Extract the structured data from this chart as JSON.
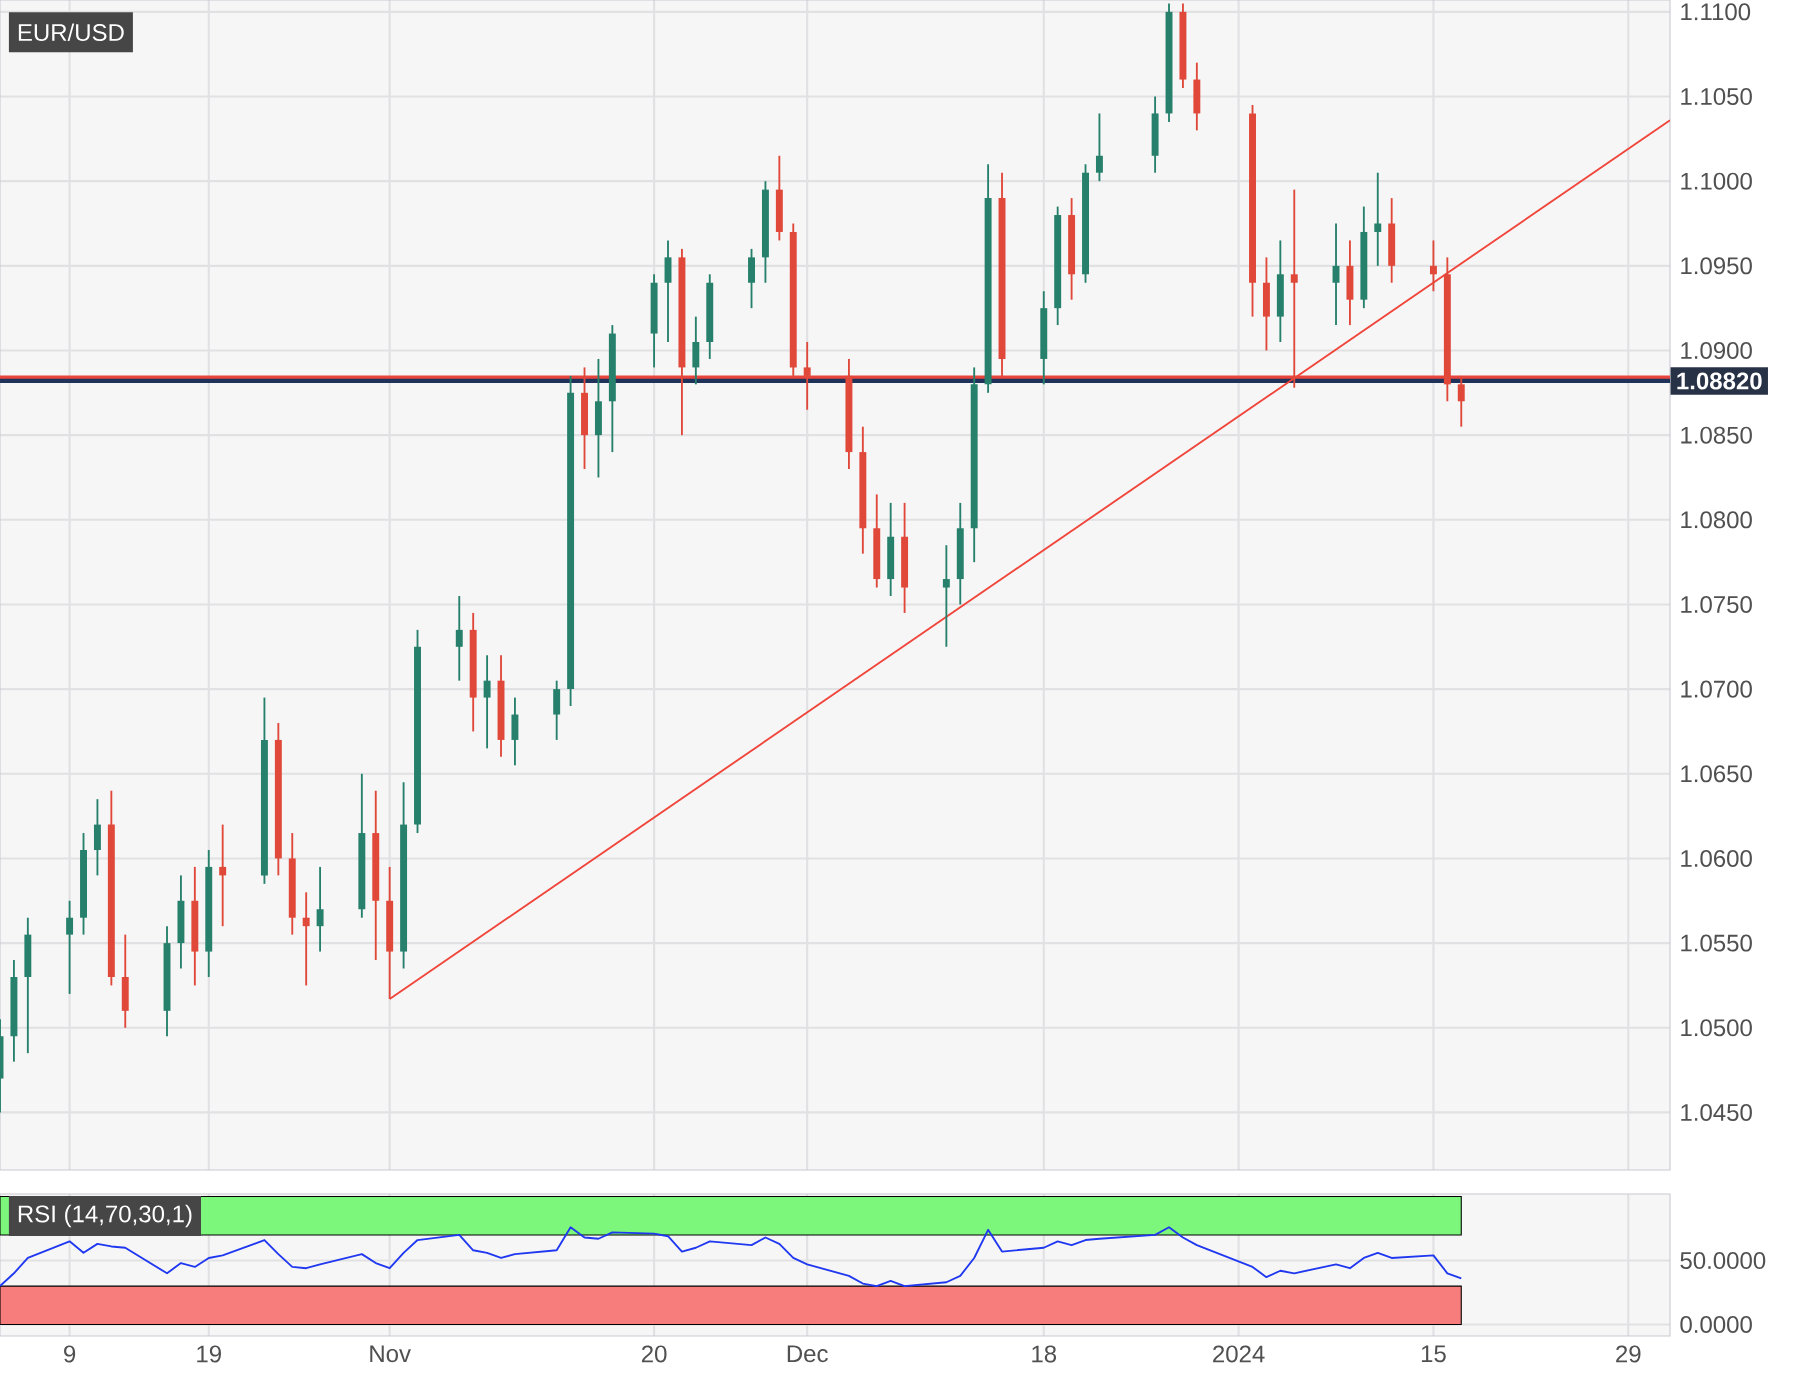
{
  "chart_data": [
    {
      "type": "candlestick",
      "title": "EUR/USD",
      "tick_labels": "y",
      "grid": true,
      "xlim": [
        "2023-10-04",
        "2024-02-01"
      ],
      "xticks": [
        {
          "value": "2023-10-09",
          "label": null
        },
        {
          "value": "2023-10-19",
          "label": null
        },
        {
          "value": "2023-11-01",
          "label": null
        },
        {
          "value": "2023-11-20",
          "label": null
        },
        {
          "value": "2023-12-01",
          "label": null
        },
        {
          "value": "2023-12-18",
          "label": null
        },
        {
          "value": "2024-01-01",
          "label": null
        },
        {
          "value": "2024-01-15",
          "label": null
        },
        {
          "value": "2024-01-29",
          "label": null
        }
      ],
      "ylim": [
        1.0416,
        1.1107
      ],
      "yticks": [
        {
          "value": 1.045,
          "label": "1.0450"
        },
        {
          "value": 1.05,
          "label": "1.0500"
        },
        {
          "value": 1.055,
          "label": "1.0550"
        },
        {
          "value": 1.06,
          "label": "1.0600"
        },
        {
          "value": 1.065,
          "label": "1.0650"
        },
        {
          "value": 1.07,
          "label": "1.0700"
        },
        {
          "value": 1.075,
          "label": "1.0750"
        },
        {
          "value": 1.08,
          "label": "1.0800"
        },
        {
          "value": 1.085,
          "label": "1.0850"
        },
        {
          "value": 1.09,
          "label": "1.0900"
        },
        {
          "value": 1.095,
          "label": "1.0950"
        },
        {
          "value": 1.1,
          "label": "1.1000"
        },
        {
          "value": 1.105,
          "label": "1.1050"
        },
        {
          "value": 1.11,
          "label": "1.1100"
        }
      ],
      "x": [
        "2023-10-04",
        "2023-10-05",
        "2023-10-06",
        "2023-10-09",
        "2023-10-10",
        "2023-10-11",
        "2023-10-12",
        "2023-10-13",
        "2023-10-16",
        "2023-10-17",
        "2023-10-18",
        "2023-10-19",
        "2023-10-20",
        "2023-10-23",
        "2023-10-24",
        "2023-10-25",
        "2023-10-26",
        "2023-10-27",
        "2023-10-30",
        "2023-10-31",
        "2023-11-01",
        "2023-11-02",
        "2023-11-03",
        "2023-11-06",
        "2023-11-07",
        "2023-11-08",
        "2023-11-09",
        "2023-11-10",
        "2023-11-13",
        "2023-11-14",
        "2023-11-15",
        "2023-11-16",
        "2023-11-17",
        "2023-11-20",
        "2023-11-21",
        "2023-11-22",
        "2023-11-23",
        "2023-11-24",
        "2023-11-27",
        "2023-11-28",
        "2023-11-29",
        "2023-11-30",
        "2023-12-01",
        "2023-12-04",
        "2023-12-05",
        "2023-12-06",
        "2023-12-07",
        "2023-12-08",
        "2023-12-11",
        "2023-12-12",
        "2023-12-13",
        "2023-12-14",
        "2023-12-15",
        "2023-12-18",
        "2023-12-19",
        "2023-12-20",
        "2023-12-21",
        "2023-12-22",
        "2023-12-26",
        "2023-12-27",
        "2023-12-28",
        "2023-12-29",
        "2024-01-02",
        "2024-01-03",
        "2024-01-04",
        "2024-01-05",
        "2024-01-08",
        "2024-01-09",
        "2024-01-10",
        "2024-01-11",
        "2024-01-12",
        "2024-01-15",
        "2024-01-16",
        "2024-01-17"
      ],
      "ohlc": [
        [
          1.047,
          1.0505,
          1.045,
          1.0495
        ],
        [
          1.0495,
          1.054,
          1.048,
          1.053
        ],
        [
          1.053,
          1.0565,
          1.0485,
          1.0555
        ],
        [
          1.0555,
          1.0575,
          1.052,
          1.0565
        ],
        [
          1.0565,
          1.0615,
          1.0555,
          1.0605
        ],
        [
          1.0605,
          1.0635,
          1.059,
          1.062
        ],
        [
          1.062,
          1.064,
          1.0525,
          1.053
        ],
        [
          1.053,
          1.0555,
          1.05,
          1.051
        ],
        [
          1.051,
          1.056,
          1.0495,
          1.055
        ],
        [
          1.055,
          1.059,
          1.0535,
          1.0575
        ],
        [
          1.0575,
          1.0595,
          1.0525,
          1.0545
        ],
        [
          1.0545,
          1.0605,
          1.053,
          1.0595
        ],
        [
          1.0595,
          1.062,
          1.056,
          1.059
        ],
        [
          1.059,
          1.0695,
          1.0585,
          1.067
        ],
        [
          1.067,
          1.068,
          1.059,
          1.06
        ],
        [
          1.06,
          1.0615,
          1.0555,
          1.0565
        ],
        [
          1.0565,
          1.058,
          1.0525,
          1.056
        ],
        [
          1.056,
          1.0595,
          1.0545,
          1.057
        ],
        [
          1.057,
          1.065,
          1.0565,
          1.0615
        ],
        [
          1.0615,
          1.064,
          1.054,
          1.0575
        ],
        [
          1.0575,
          1.0595,
          1.0517,
          1.0545
        ],
        [
          1.0545,
          1.0645,
          1.0535,
          1.062
        ],
        [
          1.062,
          1.0735,
          1.0615,
          1.0725
        ],
        [
          1.0725,
          1.0755,
          1.0705,
          1.0735
        ],
        [
          1.0735,
          1.0745,
          1.0675,
          1.0695
        ],
        [
          1.0695,
          1.072,
          1.0665,
          1.0705
        ],
        [
          1.0705,
          1.072,
          1.066,
          1.067
        ],
        [
          1.067,
          1.0695,
          1.0655,
          1.0685
        ],
        [
          1.0685,
          1.0705,
          1.067,
          1.07
        ],
        [
          1.07,
          1.0885,
          1.069,
          1.0875
        ],
        [
          1.0875,
          1.089,
          1.083,
          1.085
        ],
        [
          1.085,
          1.0895,
          1.0825,
          1.087
        ],
        [
          1.087,
          1.0915,
          1.084,
          1.091
        ],
        [
          1.091,
          1.0945,
          1.089,
          1.094
        ],
        [
          1.094,
          1.0965,
          1.0905,
          1.0955
        ],
        [
          1.0955,
          1.096,
          1.085,
          1.089
        ],
        [
          1.089,
          1.092,
          1.088,
          1.0905
        ],
        [
          1.0905,
          1.0945,
          1.0895,
          1.094
        ],
        [
          1.094,
          1.096,
          1.0925,
          1.0955
        ],
        [
          1.0955,
          1.1,
          1.094,
          1.0995
        ],
        [
          1.0995,
          1.1015,
          1.0965,
          1.097
        ],
        [
          1.097,
          1.0975,
          1.0885,
          1.089
        ],
        [
          1.089,
          1.0905,
          1.0865,
          1.0885
        ],
        [
          1.0885,
          1.0895,
          1.083,
          1.084
        ],
        [
          1.084,
          1.0855,
          1.078,
          1.0795
        ],
        [
          1.0795,
          1.0815,
          1.076,
          1.0765
        ],
        [
          1.0765,
          1.081,
          1.0755,
          1.079
        ],
        [
          1.079,
          1.081,
          1.0745,
          1.076
        ],
        [
          1.076,
          1.0785,
          1.0725,
          1.0765
        ],
        [
          1.0765,
          1.081,
          1.075,
          1.0795
        ],
        [
          1.0795,
          1.089,
          1.0775,
          1.088
        ],
        [
          1.088,
          1.101,
          1.0875,
          1.099
        ],
        [
          1.099,
          1.1005,
          1.0885,
          1.0895
        ],
        [
          1.0895,
          1.0935,
          1.088,
          1.0925
        ],
        [
          1.0925,
          1.0985,
          1.0915,
          1.098
        ],
        [
          1.098,
          1.099,
          1.093,
          1.0945
        ],
        [
          1.0945,
          1.101,
          1.094,
          1.1005
        ],
        [
          1.1005,
          1.104,
          1.1,
          1.1015
        ],
        [
          1.1015,
          1.105,
          1.1005,
          1.104
        ],
        [
          1.104,
          1.1105,
          1.1035,
          1.11
        ],
        [
          1.11,
          1.1105,
          1.1055,
          1.106
        ],
        [
          1.106,
          1.107,
          1.103,
          1.104
        ],
        [
          1.104,
          1.1045,
          1.092,
          1.094
        ],
        [
          1.094,
          1.0955,
          1.09,
          1.092
        ],
        [
          1.092,
          1.0965,
          1.0905,
          1.0945
        ],
        [
          1.0945,
          1.0995,
          1.0878,
          1.094
        ],
        [
          1.094,
          1.0975,
          1.0915,
          1.095
        ],
        [
          1.095,
          1.0965,
          1.0915,
          1.093
        ],
        [
          1.093,
          1.0985,
          1.0925,
          1.097
        ],
        [
          1.097,
          1.1005,
          1.095,
          1.0975
        ],
        [
          1.0975,
          1.099,
          1.094,
          1.095
        ],
        [
          1.095,
          1.0965,
          1.0935,
          1.0945
        ],
        [
          1.0945,
          1.0955,
          1.087,
          1.088
        ],
        [
          1.088,
          1.0885,
          1.0855,
          1.087
        ]
      ],
      "colors": [
        "#26806b",
        "#26806b",
        "#26806b",
        "#26806b",
        "#26806b",
        "#26806b",
        "#e0483a",
        "#e0483a",
        "#26806b",
        "#26806b",
        "#e0483a",
        "#26806b",
        "#e0483a",
        "#26806b",
        "#e0483a",
        "#e0483a",
        "#e0483a",
        "#26806b",
        "#26806b",
        "#e0483a",
        "#e0483a",
        "#26806b",
        "#26806b",
        "#26806b",
        "#e0483a",
        "#26806b",
        "#e0483a",
        "#26806b",
        "#26806b",
        "#26806b",
        "#e0483a",
        "#26806b",
        "#26806b",
        "#26806b",
        "#26806b",
        "#e0483a",
        "#26806b",
        "#26806b",
        "#26806b",
        "#26806b",
        "#e0483a",
        "#e0483a",
        "#e0483a",
        "#e0483a",
        "#e0483a",
        "#e0483a",
        "#26806b",
        "#e0483a",
        "#26806b",
        "#26806b",
        "#26806b",
        "#26806b",
        "#e0483a",
        "#26806b",
        "#26806b",
        "#e0483a",
        "#26806b",
        "#26806b",
        "#26806b",
        "#26806b",
        "#e0483a",
        "#e0483a",
        "#e0483a",
        "#e0483a",
        "#26806b",
        "#e0483a",
        "#26806b",
        "#e0483a",
        "#26806b",
        "#26806b",
        "#e0483a",
        "#e0483a",
        "#e0483a",
        "#e0483a"
      ],
      "series": [
        {
          "type": "line",
          "color": "#f0453a",
          "x": [
            "2023-11-01",
            "2024-02-01"
          ],
          "values": [
            1.0517,
            1.1036
          ]
        }
      ],
      "ref_lines": [
        {
          "axis": "y",
          "value": 1.0884,
          "color": "#e8453c"
        },
        {
          "axis": "y",
          "value": 1.0882,
          "label": "1.08820",
          "color": "#1e325a"
        }
      ]
    },
    {
      "type": "line",
      "title": "RSI (14,70,30,1)",
      "grid": true,
      "xlim": [
        "2023-10-04",
        "2024-02-01"
      ],
      "xticks": [
        {
          "value": "2023-10-09",
          "label": "9"
        },
        {
          "value": "2023-10-19",
          "label": "19"
        },
        {
          "value": "2023-11-01",
          "label": "Nov"
        },
        {
          "value": "2023-11-20",
          "label": "20"
        },
        {
          "value": "2023-12-01",
          "label": "Dec"
        },
        {
          "value": "2023-12-18",
          "label": "18"
        },
        {
          "value": "2024-01-01",
          "label": "2024"
        },
        {
          "value": "2024-01-15",
          "label": "15"
        },
        {
          "value": "2024-01-29",
          "label": "29"
        }
      ],
      "ylim": [
        -9,
        102
      ],
      "yticks": [
        {
          "value": 0,
          "label": "0.0000"
        },
        {
          "value": 50,
          "label": "50.0000"
        }
      ],
      "x": [
        "2023-10-04",
        "2023-10-05",
        "2023-10-06",
        "2023-10-09",
        "2023-10-10",
        "2023-10-11",
        "2023-10-12",
        "2023-10-13",
        "2023-10-16",
        "2023-10-17",
        "2023-10-18",
        "2023-10-19",
        "2023-10-20",
        "2023-10-23",
        "2023-10-24",
        "2023-10-25",
        "2023-10-26",
        "2023-10-27",
        "2023-10-30",
        "2023-10-31",
        "2023-11-01",
        "2023-11-02",
        "2023-11-03",
        "2023-11-06",
        "2023-11-07",
        "2023-11-08",
        "2023-11-09",
        "2023-11-10",
        "2023-11-13",
        "2023-11-14",
        "2023-11-15",
        "2023-11-16",
        "2023-11-17",
        "2023-11-20",
        "2023-11-21",
        "2023-11-22",
        "2023-11-23",
        "2023-11-24",
        "2023-11-27",
        "2023-11-28",
        "2023-11-29",
        "2023-11-30",
        "2023-12-01",
        "2023-12-04",
        "2023-12-05",
        "2023-12-06",
        "2023-12-07",
        "2023-12-08",
        "2023-12-11",
        "2023-12-12",
        "2023-12-13",
        "2023-12-14",
        "2023-12-15",
        "2023-12-18",
        "2023-12-19",
        "2023-12-20",
        "2023-12-21",
        "2023-12-22",
        "2023-12-26",
        "2023-12-27",
        "2023-12-28",
        "2023-12-29",
        "2024-01-02",
        "2024-01-03",
        "2024-01-04",
        "2024-01-05",
        "2024-01-08",
        "2024-01-09",
        "2024-01-10",
        "2024-01-11",
        "2024-01-12",
        "2024-01-15",
        "2024-01-16",
        "2024-01-17"
      ],
      "series": [
        {
          "color": "#2038f0",
          "values": [
            30,
            40,
            52,
            65,
            56,
            63,
            61,
            60,
            40,
            48,
            45,
            52,
            54,
            66,
            55,
            45,
            44,
            47,
            55,
            48,
            44,
            56,
            66,
            70,
            58,
            56,
            52,
            55,
            58,
            76,
            68,
            67,
            72,
            71,
            69,
            57,
            60,
            65,
            62,
            68,
            63,
            52,
            47,
            38,
            32,
            30,
            34,
            30,
            33,
            38,
            52,
            74,
            57,
            60,
            65,
            62,
            66,
            67,
            70,
            76,
            68,
            62,
            45,
            37,
            42,
            40,
            47,
            44,
            52,
            56,
            52,
            54,
            40,
            36
          ]
        }
      ],
      "bands": [
        {
          "axis": "y",
          "from": 70,
          "to": 100,
          "color": "#7cf77c"
        },
        {
          "axis": "y",
          "from": 0,
          "to": 30,
          "color": "#f77c7c"
        }
      ]
    }
  ]
}
